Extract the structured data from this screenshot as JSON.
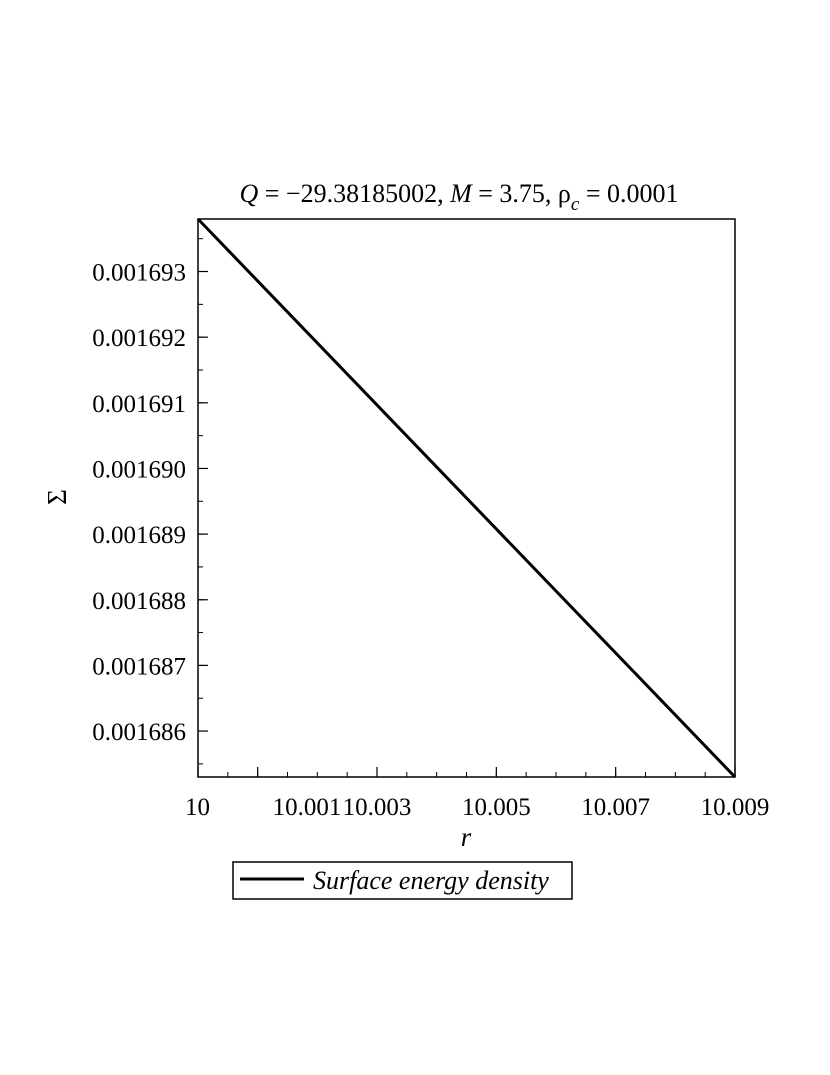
{
  "chart_data": {
    "type": "line",
    "title": {
      "q_symbol": "Q",
      "q_value": " = −29.38185002, ",
      "m_symbol": "M",
      "m_value": " = 3.75, ",
      "rho_symbol": "ρ",
      "rho_subscript": "c",
      "rho_value": " = 0.0001"
    },
    "xlabel": "r",
    "ylabel": "Σ",
    "xlim": [
      10.0,
      10.009
    ],
    "ylim": [
      0.0016853,
      0.0016938
    ],
    "x_ticks": [
      {
        "value": 10.0,
        "label": "10"
      },
      {
        "value": 10.001,
        "label": "10.001"
      },
      {
        "value": 10.003,
        "label": "10.003"
      },
      {
        "value": 10.005,
        "label": "10.005"
      },
      {
        "value": 10.007,
        "label": "10.007"
      },
      {
        "value": 10.009,
        "label": "10.009"
      }
    ],
    "x_minor_step": 0.0005,
    "y_ticks": [
      {
        "value": 0.001686,
        "label": "0.001686"
      },
      {
        "value": 0.001687,
        "label": "0.001687"
      },
      {
        "value": 0.001688,
        "label": "0.001688"
      },
      {
        "value": 0.001689,
        "label": "0.001689"
      },
      {
        "value": 0.00169,
        "label": "0.001690"
      },
      {
        "value": 0.001691,
        "label": "0.001691"
      },
      {
        "value": 0.001692,
        "label": "0.001692"
      },
      {
        "value": 0.001693,
        "label": "0.001693"
      }
    ],
    "y_minor_step": 5e-07,
    "grid": false,
    "legend_position": "bottom",
    "line_color": "#000000",
    "series": [
      {
        "name": "Surface energy density",
        "x": [
          10.0,
          10.009
        ],
        "y": [
          0.0016938,
          0.0016853
        ]
      }
    ]
  }
}
